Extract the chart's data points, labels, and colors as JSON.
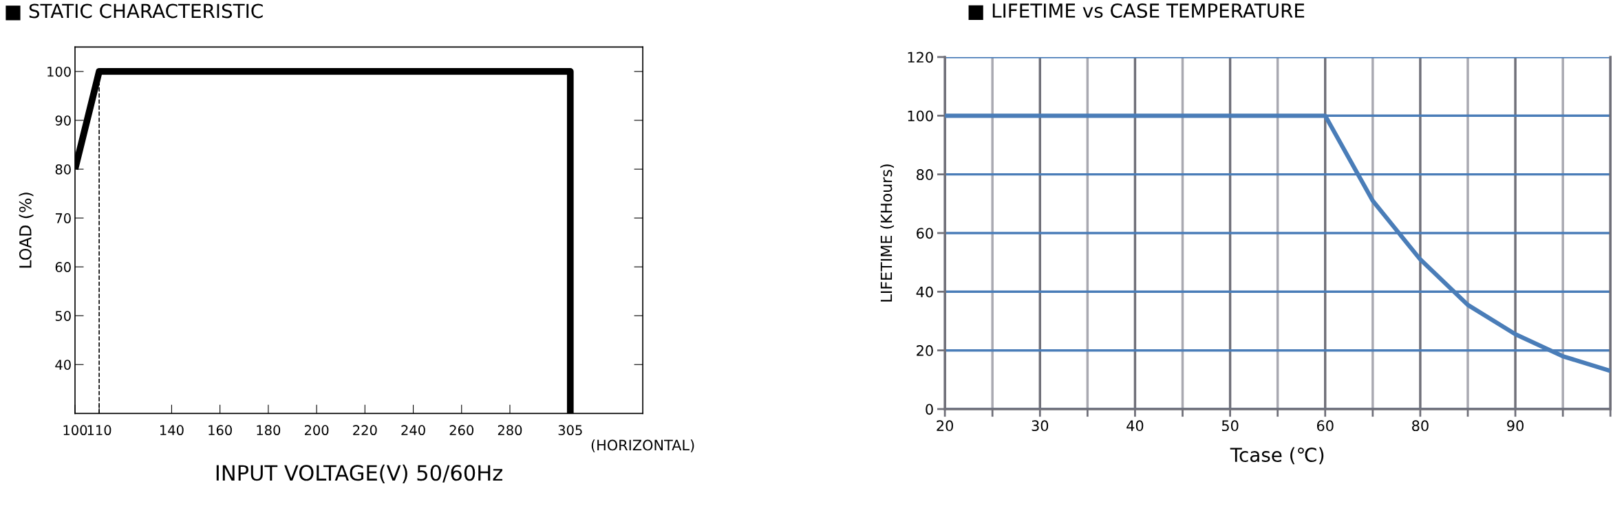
{
  "chart_data": [
    {
      "type": "line",
      "title": "■ STATIC CHARACTERISTIC",
      "xlabel": "INPUT VOLTAGE(V) 50/60Hz",
      "ylabel": "LOAD (%)",
      "annotations": [
        "(HORIZONTAL)"
      ],
      "series": [
        {
          "color": "#000000",
          "x": [
            100,
            110,
            305,
            305
          ],
          "values": [
            80,
            100,
            100,
            30
          ]
        }
      ],
      "xlim": [
        100,
        335
      ],
      "ylim": [
        30,
        105
      ],
      "xticks": [
        100,
        110,
        140,
        160,
        180,
        200,
        220,
        240,
        260,
        280,
        305
      ],
      "yticks": [
        40,
        50,
        60,
        70,
        80,
        90,
        100
      ],
      "grid": false,
      "ref_lines": [
        {
          "axis": "x",
          "value": 110,
          "line_style": "dashed",
          "color": "#000000"
        }
      ]
    },
    {
      "type": "line",
      "title": "■ LIFETIME vs CASE TEMPERATURE",
      "xlabel": "Tcase (℃)",
      "ylabel": "LIFETIME (KHours)",
      "categories": [
        "20",
        null,
        "30",
        null,
        "40",
        null,
        "50",
        null,
        "60",
        null,
        "80",
        null,
        "90",
        null,
        null
      ],
      "series": [
        {
          "color": "#4a7db8",
          "values": [
            100,
            100,
            100,
            100,
            100,
            100,
            100,
            100,
            100,
            71,
            51,
            35.5,
            25.5,
            18,
            13
          ]
        }
      ],
      "ylim": [
        0,
        120
      ],
      "yticks": [
        0,
        20,
        40,
        60,
        80,
        100,
        120
      ],
      "grid": true
    }
  ]
}
